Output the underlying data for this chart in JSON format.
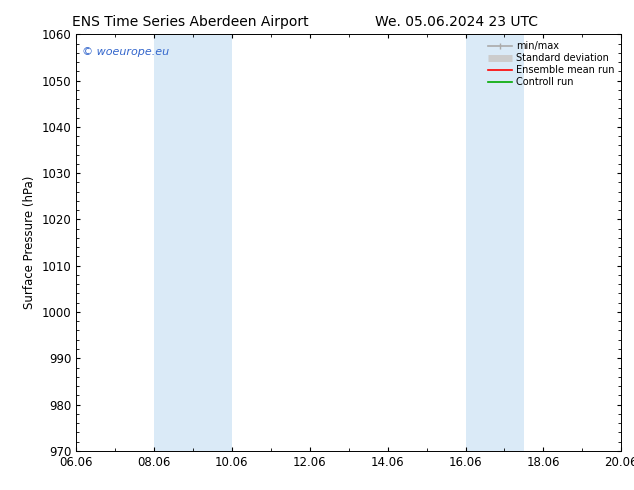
{
  "title_left": "ENS Time Series Aberdeen Airport",
  "title_right": "We. 05.06.2024 23 UTC",
  "ylabel": "Surface Pressure (hPa)",
  "ylim": [
    970,
    1060
  ],
  "yticks": [
    970,
    980,
    990,
    1000,
    1010,
    1020,
    1030,
    1040,
    1050,
    1060
  ],
  "xlim": [
    0,
    14
  ],
  "xtick_positions": [
    0,
    2,
    4,
    6,
    8,
    10,
    12,
    14
  ],
  "xtick_labels": [
    "06.06",
    "08.06",
    "10.06",
    "12.06",
    "14.06",
    "16.06",
    "18.06",
    "20.06"
  ],
  "shaded_bands": [
    {
      "x_start": 2,
      "x_end": 4
    },
    {
      "x_start": 10,
      "x_end": 11.5
    }
  ],
  "band_color": "#daeaf7",
  "background_color": "#ffffff",
  "plot_bg_color": "#ffffff",
  "watermark_text": "© woeurope.eu",
  "watermark_color": "#3366cc",
  "legend_entries": [
    {
      "label": "min/max",
      "color": "#aaaaaa",
      "lw": 1.2
    },
    {
      "label": "Standard deviation",
      "color": "#cccccc",
      "lw": 5
    },
    {
      "label": "Ensemble mean run",
      "color": "#ff0000",
      "lw": 1.2
    },
    {
      "label": "Controll run",
      "color": "#00aa00",
      "lw": 1.2
    }
  ],
  "title_fontsize": 10,
  "tick_fontsize": 8.5,
  "ylabel_fontsize": 8.5,
  "figsize": [
    6.34,
    4.9
  ],
  "dpi": 100
}
